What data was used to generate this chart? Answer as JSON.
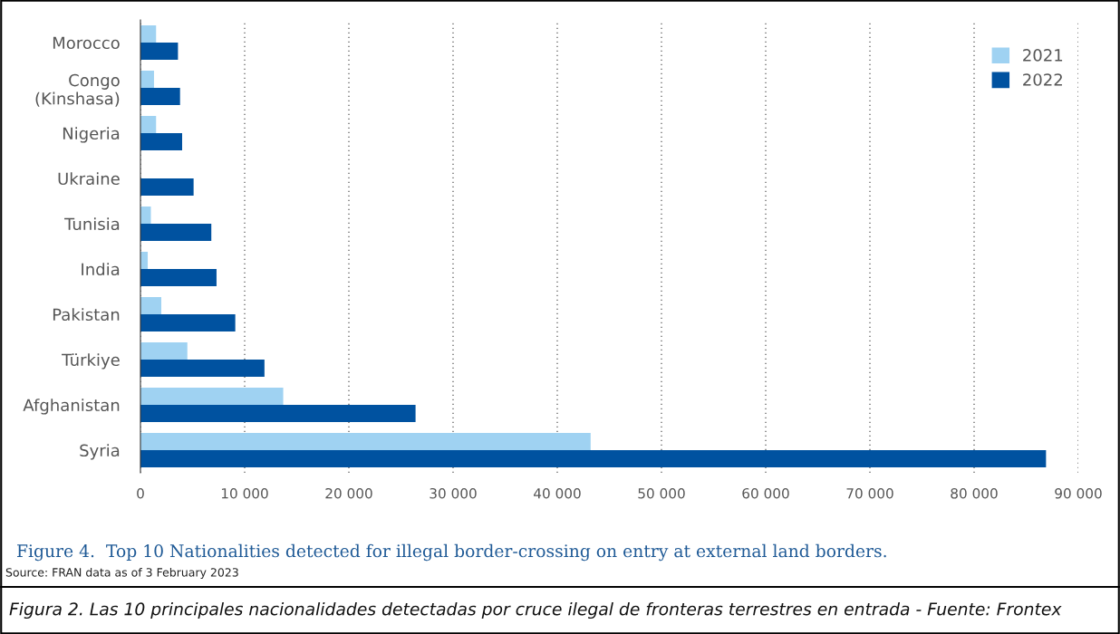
{
  "chart_data": {
    "type": "bar",
    "orientation": "horizontal",
    "title": "Figure 4.  Top 10 Nationalities detected for illegal border-crossing on entry at external land borders.",
    "categories": [
      "Morocco",
      "Congo\n(Kinshasa)",
      "Nigeria",
      "Ukraine",
      "Tunisia",
      "India",
      "Pakistan",
      "Türkiye",
      "Afghanistan",
      "Syria"
    ],
    "series": [
      {
        "name": "2021",
        "color": "#9fd2f2",
        "values": [
          1500,
          1300,
          1500,
          0,
          1000,
          700,
          2000,
          4500,
          13700,
          43200
        ]
      },
      {
        "name": "2022",
        "color": "#0052a0",
        "values": [
          3600,
          3800,
          4000,
          5100,
          6800,
          7300,
          9100,
          11900,
          26400,
          86900
        ]
      }
    ],
    "xlim": [
      0,
      90000
    ],
    "xticks": [
      0,
      {
        "value": 10000,
        "label": "10 000"
      },
      {
        "value": 20000,
        "label": "20 000"
      },
      {
        "value": 30000,
        "label": "30 000"
      },
      {
        "value": 40000,
        "label": "40 000"
      },
      {
        "value": 50000,
        "label": "50 000"
      },
      {
        "value": 60000,
        "label": "60 000"
      },
      {
        "value": 70000,
        "label": "70 000"
      },
      {
        "value": 80000,
        "label": "80 000"
      },
      {
        "value": 90000,
        "label": "90 000"
      }
    ],
    "grid": "x",
    "legend": "top right",
    "annotations": [
      "Source: FRAN data as of 3 February 2023",
      "Figura 2. Las 10 principales nacionalidades detectadas por cruce ilegal de fronteras terrestres en entrada - Fuente: Frontex"
    ]
  }
}
